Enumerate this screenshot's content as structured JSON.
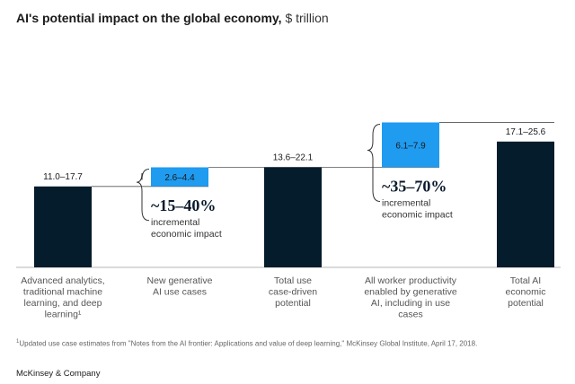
{
  "title_main": "AI's potential impact on the global economy,",
  "title_unit": "$ trillion",
  "chart_data": {
    "type": "bar",
    "subtype": "waterfall",
    "unit": "$ trillion",
    "categories": [
      [
        "Advanced analytics,",
        "traditional machine",
        "learning, and deep",
        "learning¹"
      ],
      [
        "New generative",
        "AI use cases"
      ],
      [
        "Total use",
        "case-driven",
        "potential"
      ],
      [
        "All worker productivity",
        "enabled by generative",
        "AI, including in use",
        "cases"
      ],
      [
        "Total AI",
        "economic",
        "potential"
      ]
    ],
    "bars": [
      {
        "label": "11.0–17.7",
        "low": 11.0,
        "high": 17.7,
        "kind": "total",
        "color": "#051c2c"
      },
      {
        "label": "2.6–4.4",
        "low": 2.6,
        "high": 4.4,
        "kind": "increment",
        "color": "#1f9bf0"
      },
      {
        "label": "13.6–22.1",
        "low": 13.6,
        "high": 22.1,
        "kind": "total",
        "color": "#051c2c"
      },
      {
        "label": "6.1–7.9",
        "low": 6.1,
        "high": 7.9,
        "kind": "increment",
        "color": "#1f9bf0"
      },
      {
        "label": "17.1–25.6",
        "low": 17.1,
        "high": 25.6,
        "kind": "total",
        "color": "#051c2c"
      }
    ],
    "annotations": [
      {
        "bar": 1,
        "big": "~15–40%",
        "line1": "incremental",
        "line2": "economic impact"
      },
      {
        "bar": 3,
        "big": "~35–70%",
        "line1": "incremental",
        "line2": "economic impact"
      }
    ]
  },
  "footnote": "Updated use case estimates from \"Notes from the AI frontier: Applications and value of deep learning,\" McKinsey Global Institute, April 17, 2018.",
  "footnote_mark": "1",
  "brand": "McKinsey & Company"
}
